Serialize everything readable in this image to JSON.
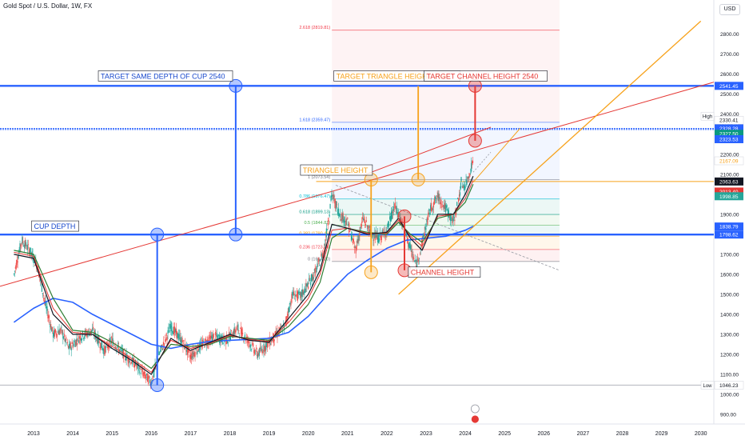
{
  "header": {
    "symbol": "Gold Spot / U.S. Dollar, 1W, FX",
    "currency": "USD"
  },
  "chart_data": {
    "type": "line",
    "y_axis": {
      "range": [
        860,
        2860
      ],
      "ticks": [
        900,
        1000,
        1100,
        1200,
        1300,
        1400,
        1500,
        1600,
        1700,
        1800,
        1900,
        2000,
        2100,
        2200,
        2300,
        2400,
        2500,
        2600,
        2700,
        2800
      ],
      "tick_labels": [
        "900.00",
        "1000.00",
        "1100.00",
        "1200.00",
        "1300.00",
        "1400.00",
        "1500.00",
        "1600.00",
        "1700.00",
        "1800.00",
        "1900.00",
        "2000.00",
        "2100.00",
        "2200.00",
        "2300.00",
        "2400.00",
        "2500.00",
        "2600.00",
        "2700.00",
        "2800.00"
      ]
    },
    "x_axis": {
      "range": [
        2012.5,
        2030.6
      ],
      "ticks": [
        2013,
        2014,
        2015,
        2016,
        2017,
        2018,
        2019,
        2020,
        2021,
        2022,
        2023,
        2024,
        2025,
        2026,
        2027,
        2028,
        2029,
        2030
      ],
      "tick_labels": [
        "2013",
        "2014",
        "2015",
        "2016",
        "2017",
        "2018",
        "2019",
        "2020",
        "2021",
        "2022",
        "2023",
        "2024",
        "2025",
        "2026",
        "2027",
        "2028",
        "2029",
        "2030"
      ]
    },
    "price_series": {
      "x": [
        2012.5,
        2012.7,
        2012.9,
        2013.1,
        2013.3,
        2013.5,
        2013.7,
        2013.9,
        2014.2,
        2014.5,
        2014.8,
        2015.0,
        2015.3,
        2015.6,
        2015.9,
        2016.0,
        2016.2,
        2016.5,
        2016.8,
        2017.0,
        2017.3,
        2017.6,
        2017.9,
        2018.2,
        2018.5,
        2018.7,
        2018.9,
        2019.2,
        2019.4,
        2019.6,
        2019.8,
        2020.0,
        2020.2,
        2020.4,
        2020.6,
        2020.8,
        2021.0,
        2021.2,
        2021.4,
        2021.6,
        2021.8,
        2022.0,
        2022.2,
        2022.4,
        2022.6,
        2022.75,
        2022.9,
        2023.1,
        2023.3,
        2023.5,
        2023.7,
        2023.9,
        2024.0,
        2024.1,
        2024.2
      ],
      "close": [
        1600,
        1770,
        1720,
        1640,
        1450,
        1300,
        1320,
        1230,
        1290,
        1320,
        1220,
        1270,
        1200,
        1150,
        1080,
        1060,
        1200,
        1340,
        1260,
        1190,
        1250,
        1290,
        1270,
        1330,
        1260,
        1200,
        1240,
        1300,
        1340,
        1500,
        1490,
        1550,
        1620,
        1720,
        2000,
        1900,
        1860,
        1720,
        1880,
        1800,
        1780,
        1820,
        1940,
        1850,
        1730,
        1640,
        1760,
        1920,
        1990,
        1930,
        1860,
        2050,
        2040,
        2100,
        2170
      ]
    },
    "ema_black": {
      "x": [
        2012.5,
        2013.0,
        2013.5,
        2014.0,
        2014.5,
        2015.0,
        2015.5,
        2016.0,
        2016.5,
        2017.0,
        2017.5,
        2018.0,
        2018.5,
        2019.0,
        2019.5,
        2020.0,
        2020.3,
        2020.6,
        2021.0,
        2021.5,
        2022.0,
        2022.3,
        2022.6,
        2022.9,
        2023.3,
        2023.7,
        2024.0,
        2024.2
      ],
      "y": [
        1700,
        1680,
        1400,
        1300,
        1300,
        1230,
        1170,
        1100,
        1280,
        1220,
        1260,
        1300,
        1270,
        1260,
        1380,
        1500,
        1620,
        1850,
        1830,
        1800,
        1810,
        1880,
        1780,
        1720,
        1900,
        1900,
        2000,
        2090
      ]
    },
    "ema_green": {
      "x": [
        2012.5,
        2013.0,
        2013.5,
        2014.0,
        2014.5,
        2015.0,
        2015.5,
        2016.0,
        2016.5,
        2017.0,
        2017.5,
        2018.0,
        2018.5,
        2019.0,
        2019.5,
        2020.0,
        2020.3,
        2020.6,
        2021.0,
        2021.5,
        2022.0,
        2022.3,
        2022.6,
        2022.9,
        2023.3,
        2023.7,
        2024.0,
        2024.2
      ],
      "y": [
        1720,
        1700,
        1480,
        1320,
        1310,
        1260,
        1200,
        1130,
        1250,
        1240,
        1250,
        1290,
        1280,
        1270,
        1340,
        1450,
        1560,
        1780,
        1830,
        1810,
        1800,
        1860,
        1800,
        1760,
        1880,
        1900,
        1960,
        2050
      ]
    },
    "ema_red": {
      "x": [
        2012.5,
        2013.0,
        2013.5,
        2014.0,
        2014.5,
        2015.0,
        2015.5,
        2016.0,
        2016.5,
        2017.0,
        2017.5,
        2018.0,
        2018.5,
        2019.0,
        2019.5,
        2020.0,
        2020.3,
        2020.6,
        2021.0,
        2021.5,
        2022.0,
        2022.3,
        2022.6,
        2022.9,
        2023.3,
        2023.7,
        2024.0,
        2024.2
      ],
      "y": [
        1710,
        1690,
        1430,
        1310,
        1300,
        1240,
        1180,
        1110,
        1270,
        1230,
        1255,
        1295,
        1275,
        1265,
        1360,
        1480,
        1600,
        1820,
        1830,
        1805,
        1805,
        1870,
        1790,
        1740,
        1890,
        1900,
        1980,
        2070
      ]
    },
    "ema_blue_long": {
      "x": [
        2012.5,
        2013.0,
        2013.5,
        2014.0,
        2014.5,
        2015.0,
        2015.5,
        2016.0,
        2016.5,
        2017.0,
        2017.5,
        2018.0,
        2018.5,
        2019.0,
        2019.5,
        2020.0,
        2020.5,
        2021.0,
        2021.5,
        2022.0,
        2022.5,
        2023.0,
        2023.5,
        2024.0,
        2024.2
      ],
      "y": [
        1360,
        1430,
        1480,
        1460,
        1400,
        1350,
        1300,
        1250,
        1230,
        1250,
        1265,
        1270,
        1275,
        1280,
        1310,
        1390,
        1500,
        1600,
        1670,
        1730,
        1770,
        1780,
        1790,
        1820,
        1840
      ]
    },
    "fib_levels": {
      "x_range": [
        2020.6,
        2026.4
      ],
      "levels": [
        {
          "label": "0 (1664.20)",
          "price": 1664.2
        },
        {
          "label": "0.236 (1723.78)",
          "price": 1723.78
        },
        {
          "label": "0.382 (1790.49)",
          "price": 1790.49
        },
        {
          "label": "0.5 (1844.81)",
          "price": 1844.81
        },
        {
          "label": "0.618 (1899.13)",
          "price": 1899.13
        },
        {
          "label": "0.786 (1976.47)",
          "price": 1976.47
        },
        {
          "label": "1 (2073.54)",
          "price": 2073.54
        },
        {
          "label": "1.618 (2359.47)",
          "price": 2359.47
        },
        {
          "label": "2.618 (2819.81)",
          "price": 2819.81
        }
      ]
    },
    "horizontal_lines": [
      {
        "price": 2541.45,
        "color": "#2962ff"
      },
      {
        "price": 1798.62,
        "color": "#2962ff"
      },
      {
        "price": 2063.63,
        "color": "#f7a21b"
      },
      {
        "price": 2328.28,
        "color": "#2962ff"
      },
      {
        "price": 2323.53,
        "color": "#2962ff"
      },
      {
        "price": 1046.23,
        "color": "#b2b5be"
      }
    ],
    "annotations": [
      {
        "text": "TARGET SAME DEPTH OF CUP 2540",
        "color": "#1848cc"
      },
      {
        "text": "TARGET TRIANGLE HEIGHT 2540",
        "color": "#f7a21b"
      },
      {
        "text": "TARGET CHANNEL HEIGHT 2540",
        "color": "#e53935"
      },
      {
        "text": "TRIANGLE HEIGHT",
        "color": "#f7a21b"
      },
      {
        "text": "CUP DEPTH",
        "color": "#1848cc"
      },
      {
        "text": "CHANNEL HEIGHT",
        "color": "#e53935"
      }
    ],
    "price_labels": [
      {
        "text": "2541.45",
        "price": 2541.45,
        "bg": "#2962ff",
        "fg": "#ffffff"
      },
      {
        "text": "2347.58",
        "price": 2347.58,
        "bg": "#2962ff",
        "fg": "#ffffff"
      },
      {
        "text": "2330.41",
        "price": 2370,
        "bg": "#ffffff",
        "fg": "#131722"
      },
      {
        "text": "2328.28",
        "price": 2328.28,
        "bg": "#2962ff",
        "fg": "#ffffff"
      },
      {
        "text": "2327.50",
        "price": 2302,
        "bg": "#089981",
        "fg": "#ffffff"
      },
      {
        "text": "2323.53",
        "price": 2275,
        "bg": "#2962ff",
        "fg": "#ffffff"
      },
      {
        "text": "2167.09",
        "price": 2167.09,
        "bg": "#ffffff",
        "fg": "#f7a21b"
      },
      {
        "text": "2063.63",
        "price": 2063.63,
        "bg": "#131722",
        "fg": "#ffffff"
      },
      {
        "text": "2013.40",
        "price": 2013.4,
        "bg": "#e53935",
        "fg": "#ffffff"
      },
      {
        "text": "1998.85",
        "price": 1990,
        "bg": "#26a69a",
        "fg": "#ffffff"
      },
      {
        "text": "1838.79",
        "price": 1838.79,
        "bg": "#2962ff",
        "fg": "#ffffff"
      },
      {
        "text": "1798.62",
        "price": 1798.62,
        "bg": "#2962ff",
        "fg": "#ffffff"
      },
      {
        "text": "1046.23",
        "price": 1046.23,
        "bg": "#ffffff",
        "fg": "#131722"
      }
    ],
    "extreme_tags": [
      {
        "text": "High",
        "price": 2330.41
      },
      {
        "text": "Low",
        "price": 1046.23
      }
    ],
    "grid": false,
    "legend": "none"
  }
}
